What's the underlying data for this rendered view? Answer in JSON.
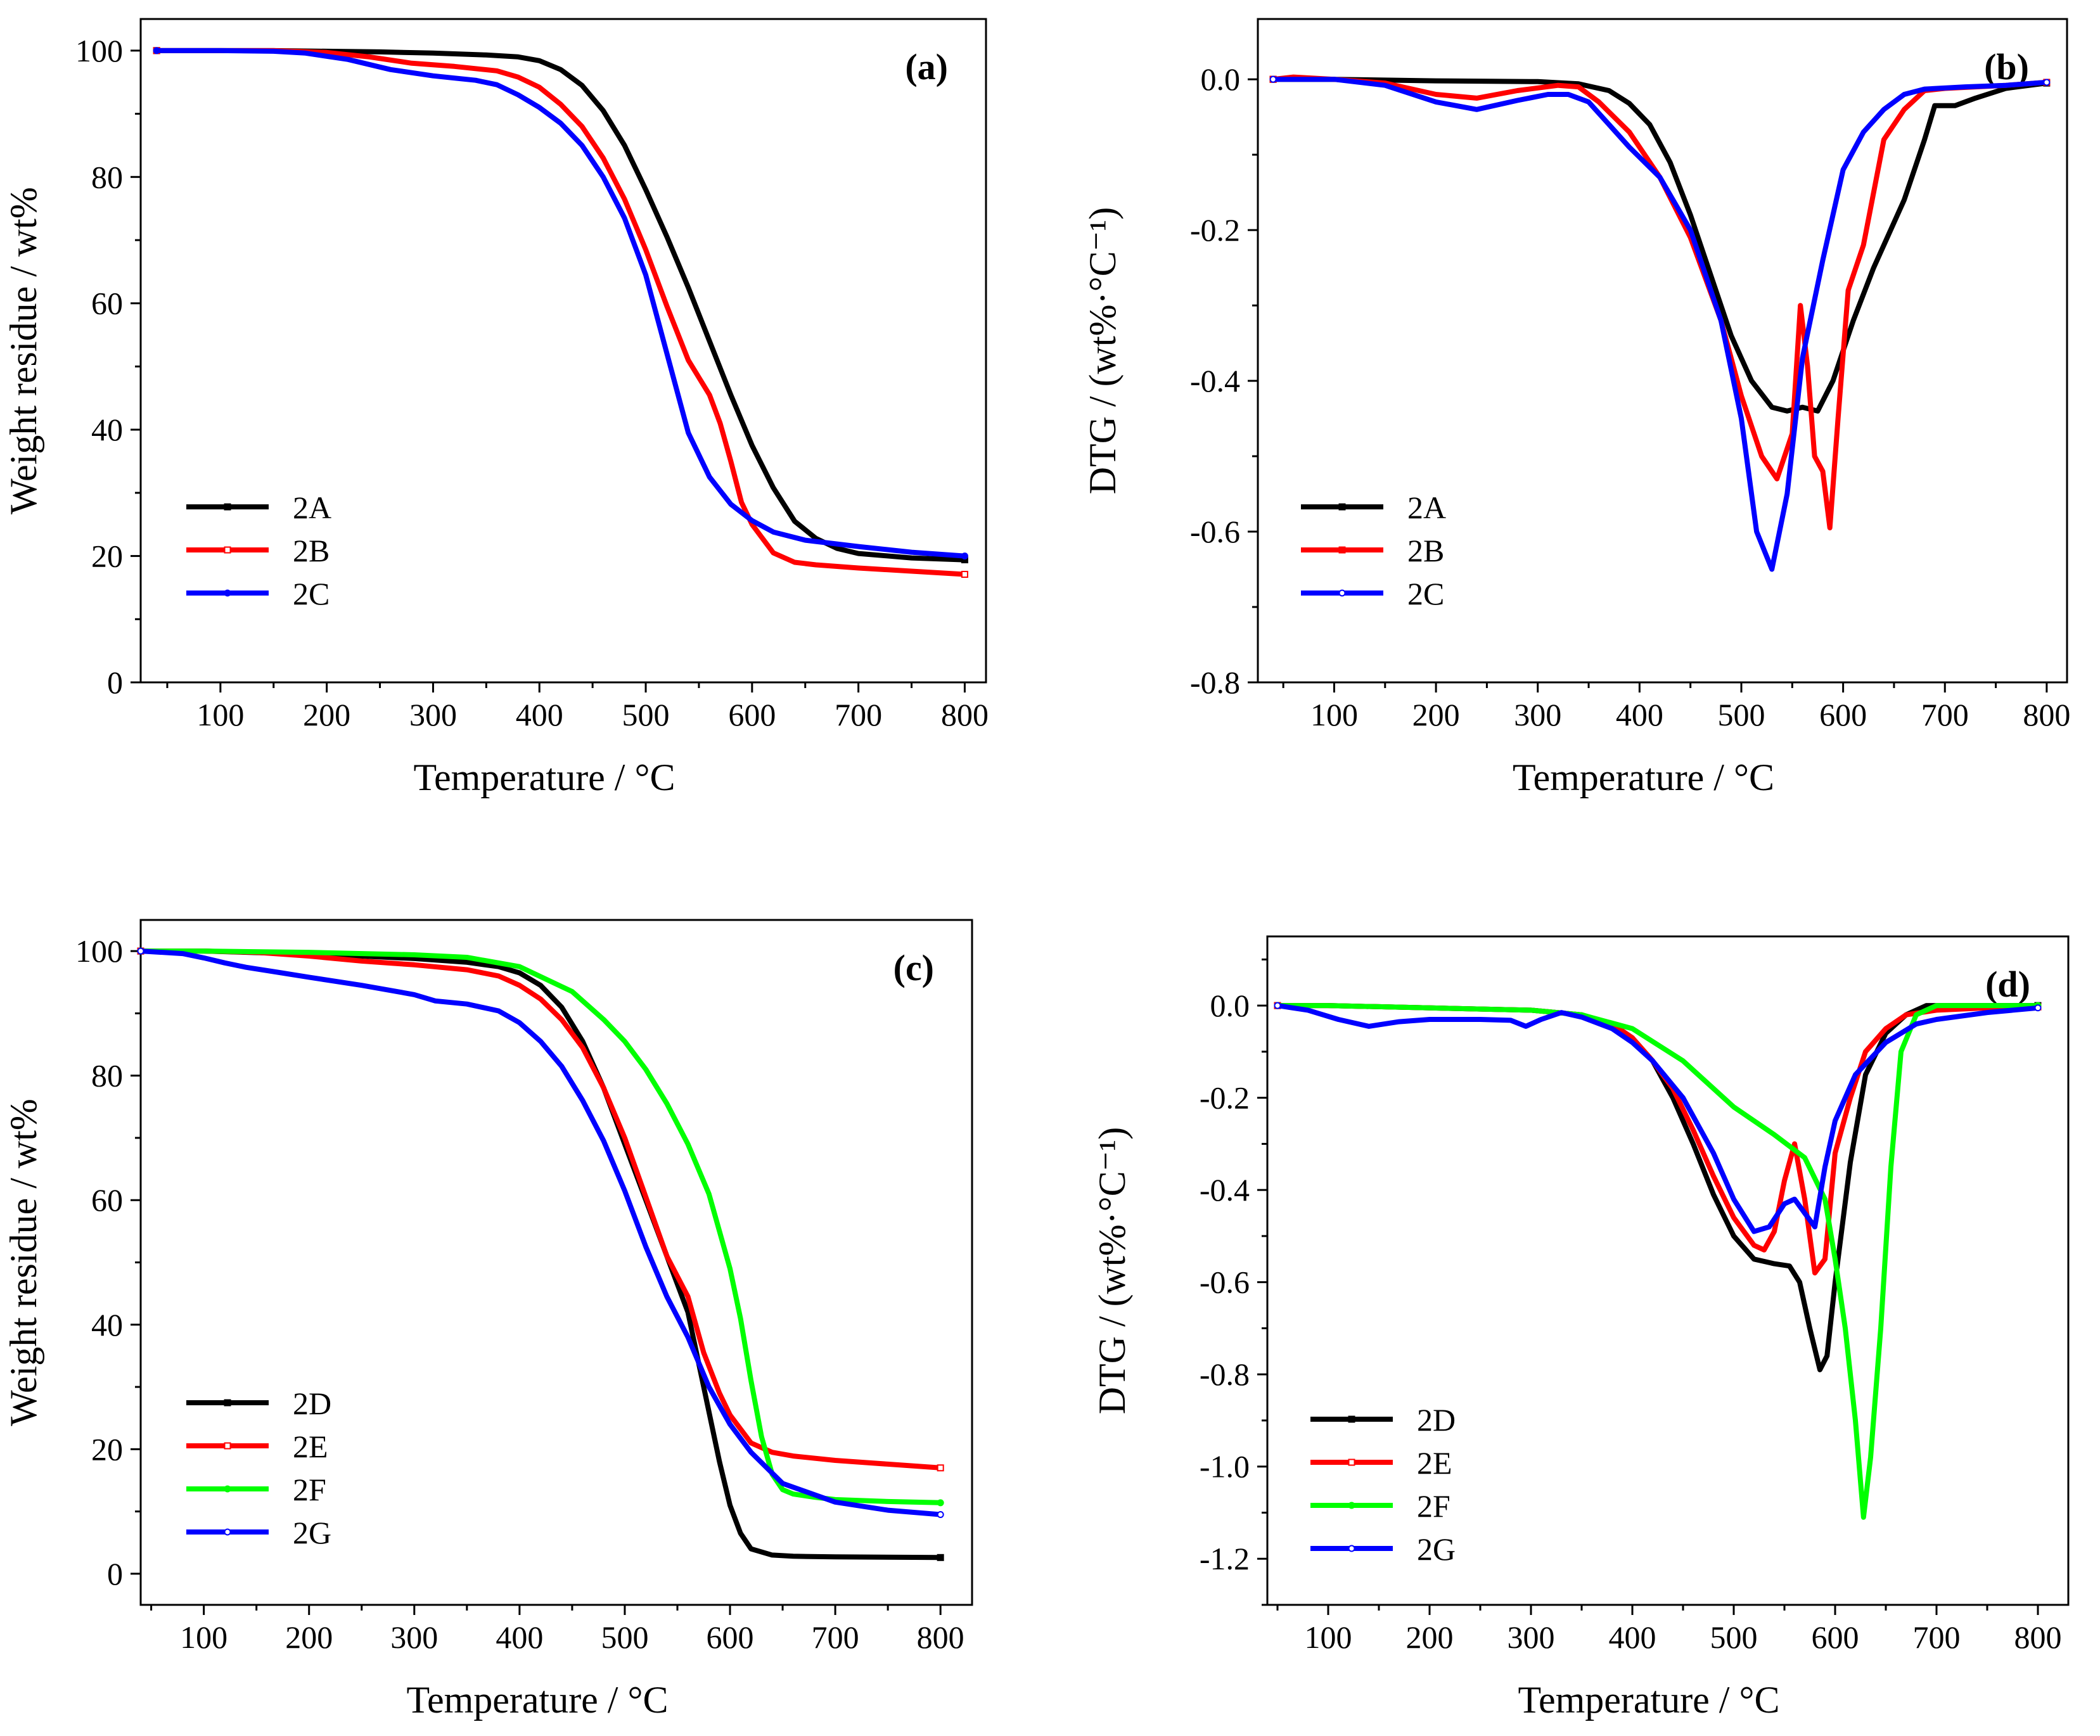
{
  "chart_data": [
    {
      "panel_label": "(a)",
      "type": "line",
      "xlabel": "Temperature / °C",
      "ylabel": "Weight residue / wt%",
      "xlim": [
        25,
        820
      ],
      "ylim": [
        0,
        105
      ],
      "xticks": [
        100,
        200,
        300,
        400,
        500,
        600,
        700,
        800
      ],
      "yticks": [
        0,
        20,
        40,
        60,
        80,
        100
      ],
      "ytick_labels": [
        "0",
        "20",
        "40",
        "60",
        "80",
        "100"
      ],
      "legend": "bottom-left",
      "series": [
        {
          "name": "2A",
          "color": "#000000",
          "marker": "square-filled",
          "x": [
            40,
            100,
            150,
            200,
            250,
            300,
            350,
            380,
            400,
            420,
            440,
            460,
            480,
            500,
            520,
            540,
            560,
            580,
            600,
            620,
            640,
            660,
            680,
            700,
            750,
            800
          ],
          "y": [
            100,
            100,
            100,
            99.9,
            99.8,
            99.6,
            99.3,
            99,
            98.4,
            97,
            94.5,
            90.5,
            85,
            78,
            70.5,
            62.5,
            54,
            45.5,
            37.5,
            30.8,
            25.5,
            22.8,
            21.2,
            20.4,
            19.7,
            19.4
          ]
        },
        {
          "name": "2B",
          "color": "#ff0000",
          "marker": "square-open",
          "x": [
            40,
            100,
            150,
            200,
            240,
            280,
            320,
            360,
            380,
            400,
            420,
            440,
            460,
            480,
            500,
            520,
            540,
            560,
            570,
            580,
            590,
            600,
            620,
            640,
            660,
            700,
            750,
            800
          ],
          "y": [
            100,
            100,
            100,
            99.7,
            99,
            98,
            97.5,
            96.8,
            95.8,
            94.2,
            91.5,
            88,
            83,
            76.5,
            68.5,
            59.5,
            51,
            45.5,
            41,
            35,
            28.5,
            25,
            20.5,
            19,
            18.6,
            18.1,
            17.6,
            17.1
          ]
        },
        {
          "name": "2C",
          "color": "#0000ff",
          "marker": "circle-filled",
          "x": [
            40,
            100,
            150,
            180,
            220,
            260,
            300,
            340,
            360,
            380,
            400,
            420,
            440,
            460,
            480,
            500,
            520,
            540,
            560,
            580,
            600,
            620,
            650,
            700,
            750,
            800
          ],
          "y": [
            100,
            100,
            99.9,
            99.6,
            98.6,
            97,
            96,
            95.3,
            94.6,
            93,
            91,
            88.5,
            85,
            80,
            73.5,
            64.5,
            52,
            39.5,
            32.5,
            28.2,
            25.6,
            23.8,
            22.5,
            21.5,
            20.6,
            20
          ]
        }
      ]
    },
    {
      "panel_label": "(b)",
      "type": "line",
      "xlabel": "Temperature / °C",
      "ylabel": "DTG / (wt%·°C⁻¹)",
      "xlim": [
        25,
        820
      ],
      "ylim": [
        -0.8,
        0.08
      ],
      "xticks": [
        100,
        200,
        300,
        400,
        500,
        600,
        700,
        800
      ],
      "yticks": [
        -0.8,
        -0.6,
        -0.4,
        -0.2,
        0.0
      ],
      "ytick_labels": [
        "-0.8",
        "-0.6",
        "-0.4",
        "-0.2",
        "0.0"
      ],
      "legend": "bottom-left",
      "series": [
        {
          "name": "2A",
          "color": "#000000",
          "marker": "square-filled",
          "x": [
            40,
            100,
            200,
            300,
            340,
            370,
            390,
            410,
            430,
            450,
            470,
            490,
            510,
            530,
            545,
            560,
            575,
            590,
            610,
            630,
            640,
            660,
            680,
            690,
            710,
            730,
            760,
            800
          ],
          "y": [
            0,
            0,
            -0.002,
            -0.003,
            -0.006,
            -0.015,
            -0.032,
            -0.06,
            -0.11,
            -0.18,
            -0.26,
            -0.34,
            -0.4,
            -0.435,
            -0.44,
            -0.435,
            -0.44,
            -0.4,
            -0.32,
            -0.25,
            -0.22,
            -0.16,
            -0.08,
            -0.035,
            -0.035,
            -0.025,
            -0.012,
            -0.005
          ]
        },
        {
          "name": "2B",
          "color": "#ff0000",
          "marker": "square-filled",
          "x": [
            40,
            60,
            100,
            150,
            200,
            240,
            280,
            320,
            340,
            360,
            390,
            420,
            450,
            480,
            500,
            520,
            535,
            550,
            558,
            565,
            572,
            580,
            587,
            595,
            605,
            620,
            640,
            660,
            680,
            700,
            760,
            800
          ],
          "y": [
            0,
            0.003,
            0,
            -0.005,
            -0.02,
            -0.025,
            -0.015,
            -0.008,
            -0.01,
            -0.03,
            -0.07,
            -0.13,
            -0.21,
            -0.32,
            -0.42,
            -0.5,
            -0.53,
            -0.47,
            -0.3,
            -0.38,
            -0.5,
            -0.52,
            -0.595,
            -0.45,
            -0.28,
            -0.22,
            -0.08,
            -0.04,
            -0.015,
            -0.012,
            -0.008,
            -0.004
          ]
        },
        {
          "name": "2C",
          "color": "#0000ff",
          "marker": "circle-open",
          "x": [
            40,
            100,
            150,
            200,
            240,
            280,
            310,
            330,
            350,
            370,
            390,
            420,
            450,
            480,
            500,
            515,
            530,
            545,
            560,
            580,
            600,
            620,
            640,
            660,
            680,
            720,
            760,
            800
          ],
          "y": [
            0,
            0,
            -0.008,
            -0.03,
            -0.04,
            -0.028,
            -0.02,
            -0.02,
            -0.03,
            -0.06,
            -0.09,
            -0.13,
            -0.2,
            -0.32,
            -0.45,
            -0.6,
            -0.65,
            -0.55,
            -0.37,
            -0.24,
            -0.12,
            -0.07,
            -0.04,
            -0.02,
            -0.013,
            -0.01,
            -0.008,
            -0.004
          ]
        }
      ]
    },
    {
      "panel_label": "(c)",
      "type": "line",
      "xlabel": "Temperature / °C",
      "ylabel": "Weight residue / wt%",
      "xlim": [
        40,
        830
      ],
      "ylim": [
        -5,
        105
      ],
      "xticks": [
        100,
        200,
        300,
        400,
        500,
        600,
        700,
        800
      ],
      "yticks": [
        0,
        20,
        40,
        60,
        80,
        100
      ],
      "ytick_labels": [
        "0",
        "20",
        "40",
        "60",
        "80",
        "100"
      ],
      "legend": "bottom-left",
      "series": [
        {
          "name": "2D",
          "color": "#000000",
          "marker": "square-filled",
          "x": [
            40,
            100,
            200,
            250,
            300,
            350,
            380,
            400,
            420,
            440,
            460,
            480,
            500,
            520,
            540,
            560,
            575,
            590,
            600,
            610,
            620,
            640,
            660,
            700,
            800
          ],
          "y": [
            100,
            100,
            99.5,
            99.2,
            98.8,
            98.2,
            97.5,
            96.5,
            94.5,
            91,
            85.5,
            78,
            69,
            60,
            51,
            42,
            30,
            18,
            11,
            6.5,
            4,
            3,
            2.8,
            2.7,
            2.6
          ]
        },
        {
          "name": "2E",
          "color": "#ff0000",
          "marker": "square-open",
          "x": [
            40,
            100,
            150,
            200,
            250,
            300,
            350,
            380,
            400,
            420,
            440,
            460,
            480,
            500,
            520,
            540,
            560,
            575,
            590,
            600,
            620,
            640,
            660,
            700,
            750,
            800
          ],
          "y": [
            100,
            100,
            99.8,
            99.2,
            98.4,
            97.8,
            97,
            96,
            94.5,
            92.3,
            89,
            84.5,
            78,
            70,
            60.5,
            51,
            44.5,
            35.5,
            29,
            25.5,
            21,
            19.5,
            18.9,
            18.2,
            17.6,
            17
          ]
        },
        {
          "name": "2F",
          "color": "#00ff00",
          "marker": "circle-filled",
          "x": [
            40,
            100,
            200,
            300,
            350,
            400,
            450,
            480,
            500,
            520,
            540,
            560,
            580,
            600,
            610,
            620,
            630,
            640,
            650,
            660,
            680,
            700,
            750,
            800
          ],
          "y": [
            100,
            100,
            99.8,
            99.4,
            99,
            97.5,
            93.5,
            89,
            85.5,
            81,
            75.5,
            69,
            61,
            49,
            41,
            31,
            22,
            16,
            13.5,
            12.8,
            12.3,
            11.9,
            11.6,
            11.4
          ]
        },
        {
          "name": "2G",
          "color": "#0000ff",
          "marker": "circle-open",
          "x": [
            40,
            80,
            100,
            120,
            140,
            170,
            200,
            250,
            300,
            320,
            350,
            380,
            400,
            420,
            440,
            460,
            480,
            500,
            520,
            540,
            560,
            580,
            600,
            620,
            650,
            700,
            750,
            800
          ],
          "y": [
            100,
            99.6,
            98.9,
            98.1,
            97.4,
            96.6,
            95.8,
            94.5,
            93,
            92,
            91.5,
            90.4,
            88.5,
            85.5,
            81.5,
            76,
            69.5,
            61.5,
            52.5,
            44.5,
            38,
            30,
            24,
            19.5,
            14.5,
            11.5,
            10.2,
            9.5
          ]
        }
      ]
    },
    {
      "panel_label": "(d)",
      "type": "line",
      "xlabel": "Temperature / °C",
      "ylabel": "DTG / (wt%·°C⁻¹)",
      "xlim": [
        40,
        830
      ],
      "ylim": [
        -1.3,
        0.15
      ],
      "xticks": [
        100,
        200,
        300,
        400,
        500,
        600,
        700,
        800
      ],
      "yticks": [
        -1.2,
        -1.0,
        -0.8,
        -0.6,
        -0.4,
        -0.2,
        0.0
      ],
      "ytick_labels": [
        "-1.2",
        "-1.0",
        "-0.8",
        "-0.6",
        "-0.4",
        "-0.2",
        "0.0"
      ],
      "legend": "bottom-left",
      "series": [
        {
          "name": "2D",
          "color": "#000000",
          "marker": "square-filled",
          "x": [
            50,
            100,
            200,
            300,
            350,
            380,
            400,
            420,
            440,
            460,
            480,
            500,
            520,
            540,
            555,
            565,
            575,
            585,
            592,
            600,
            615,
            630,
            650,
            670,
            690,
            710,
            740,
            800
          ],
          "y": [
            0,
            0,
            -0.005,
            -0.01,
            -0.02,
            -0.04,
            -0.07,
            -0.12,
            -0.2,
            -0.3,
            -0.41,
            -0.5,
            -0.55,
            -0.56,
            -0.565,
            -0.6,
            -0.7,
            -0.79,
            -0.76,
            -0.6,
            -0.34,
            -0.15,
            -0.06,
            -0.02,
            0,
            0,
            0,
            0
          ]
        },
        {
          "name": "2E",
          "color": "#ff0000",
          "marker": "square-open",
          "x": [
            50,
            100,
            200,
            300,
            350,
            380,
            400,
            420,
            440,
            460,
            480,
            500,
            520,
            530,
            540,
            550,
            560,
            570,
            580,
            590,
            600,
            615,
            630,
            650,
            670,
            700,
            750,
            800
          ],
          "y": [
            0,
            0,
            -0.005,
            -0.01,
            -0.02,
            -0.04,
            -0.07,
            -0.12,
            -0.18,
            -0.27,
            -0.37,
            -0.46,
            -0.52,
            -0.53,
            -0.49,
            -0.38,
            -0.3,
            -0.42,
            -0.58,
            -0.55,
            -0.32,
            -0.2,
            -0.1,
            -0.05,
            -0.02,
            -0.01,
            -0.005,
            -0.003
          ]
        },
        {
          "name": "2F",
          "color": "#00ff00",
          "marker": "circle-filled",
          "x": [
            50,
            100,
            200,
            300,
            350,
            400,
            450,
            500,
            540,
            570,
            590,
            600,
            610,
            620,
            628,
            635,
            645,
            655,
            665,
            680,
            700,
            750,
            800
          ],
          "y": [
            0,
            0,
            -0.005,
            -0.01,
            -0.02,
            -0.05,
            -0.12,
            -0.22,
            -0.28,
            -0.33,
            -0.42,
            -0.55,
            -0.7,
            -0.9,
            -1.11,
            -0.98,
            -0.7,
            -0.35,
            -0.1,
            -0.02,
            0,
            0,
            0
          ]
        },
        {
          "name": "2G",
          "color": "#0000ff",
          "marker": "circle-open",
          "x": [
            50,
            80,
            110,
            140,
            170,
            200,
            250,
            280,
            295,
            310,
            330,
            350,
            380,
            400,
            420,
            450,
            480,
            500,
            520,
            535,
            550,
            560,
            570,
            580,
            590,
            600,
            620,
            650,
            680,
            700,
            750,
            800
          ],
          "y": [
            0,
            -0.01,
            -0.03,
            -0.045,
            -0.035,
            -0.03,
            -0.03,
            -0.032,
            -0.045,
            -0.03,
            -0.015,
            -0.025,
            -0.05,
            -0.08,
            -0.12,
            -0.2,
            -0.32,
            -0.42,
            -0.49,
            -0.48,
            -0.43,
            -0.42,
            -0.45,
            -0.48,
            -0.35,
            -0.25,
            -0.15,
            -0.08,
            -0.04,
            -0.03,
            -0.015,
            -0.005
          ]
        }
      ]
    }
  ]
}
